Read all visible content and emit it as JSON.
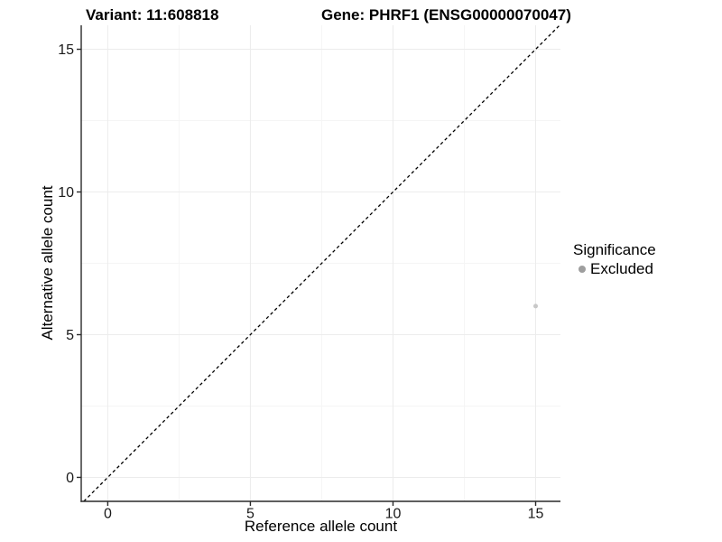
{
  "chart_data": {
    "type": "scatter",
    "title_variant": "Variant: 11:608818",
    "title_gene": "Gene: PHRF1 (ENSG00000070047)",
    "xlabel": "Reference allele count",
    "ylabel": "Alternative allele count",
    "xlim": [
      -0.93,
      15.87
    ],
    "ylim": [
      -0.84,
      15.84
    ],
    "xticks": [
      0,
      5,
      10,
      15
    ],
    "yticks": [
      0,
      5,
      10,
      15
    ],
    "xminor": [
      2.5,
      7.5,
      12.5
    ],
    "yminor": [
      2.5,
      7.5,
      12.5
    ],
    "grid": "major+minor",
    "identity_line": {
      "style": "dashed",
      "slope": 1,
      "intercept": 0,
      "color": "#000000"
    },
    "series": [
      {
        "name": "Excluded",
        "color": "#c8c8c8",
        "points": [
          {
            "x": 15,
            "y": 6
          }
        ]
      }
    ],
    "legend": {
      "position": "right",
      "title": "Significance",
      "entries": [
        {
          "label": "Excluded",
          "color": "#9e9e9e"
        }
      ]
    },
    "colors": {
      "axis": "#2a2a2a",
      "grid_major": "#ececec",
      "grid_minor": "#f5f5f5",
      "tick_text": "#1a1a1a"
    }
  }
}
